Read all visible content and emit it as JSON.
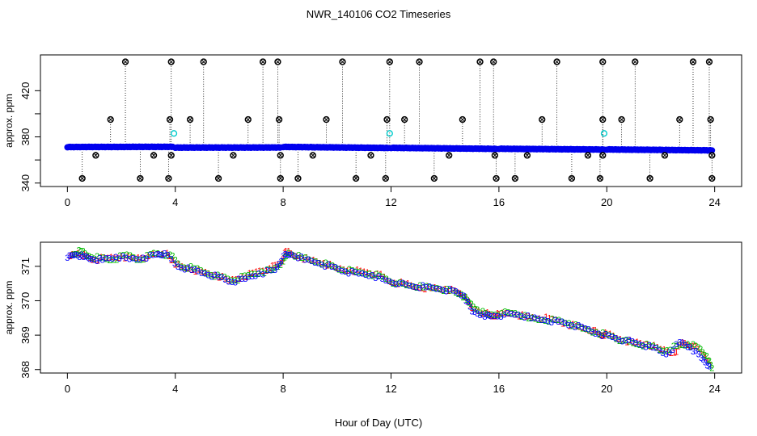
{
  "figure": {
    "title": "NWR_140106  CO2 Timeseries",
    "xlabel": "Hour of Day (UTC)"
  },
  "colors": {
    "axis": "#000000",
    "main_series": "#0000ee",
    "outlier_marker": "#000000",
    "flag_marker": "#00cccc",
    "spike_line": "#000000",
    "sub_series": [
      "#ff0000",
      "#00bb00",
      "#0000ff"
    ]
  },
  "chart_data": [
    {
      "type": "scatter",
      "panel": "top",
      "ylabel": "approx. ppm",
      "xlim": [
        -1,
        25
      ],
      "ylim": [
        337,
        451
      ],
      "x_ticks": [
        0,
        4,
        8,
        12,
        16,
        20,
        24
      ],
      "y_ticks": [
        340,
        360,
        380,
        400,
        420
      ],
      "y_tick_labels": [
        "340",
        "",
        "380",
        "",
        "420"
      ],
      "baseline": {
        "description": "dense series of blue circles",
        "segments": [
          {
            "x": [
              0.0,
              3.9
            ],
            "y": [
              371.2,
              371.4
            ]
          },
          {
            "x": [
              4.0,
              7.9
            ],
            "y": [
              370.7,
              370.8
            ]
          },
          {
            "x": [
              8.0,
              11.9
            ],
            "y": [
              371.3,
              370.4
            ]
          },
          {
            "x": [
              12.0,
              15.9
            ],
            "y": [
              370.5,
              369.6
            ]
          },
          {
            "x": [
              16.0,
              19.9
            ],
            "y": [
              369.7,
              369.0
            ]
          },
          {
            "x": [
              20.0,
              23.9
            ],
            "y": [
              369.1,
              368.3
            ]
          }
        ]
      },
      "flagged": [
        {
          "x": 3.95,
          "y": 383
        },
        {
          "x": 11.95,
          "y": 383
        },
        {
          "x": 19.9,
          "y": 383
        }
      ],
      "outliers_high": [
        {
          "x": 2.15,
          "y": 445
        },
        {
          "x": 3.85,
          "y": 445
        },
        {
          "x": 5.05,
          "y": 445
        },
        {
          "x": 7.25,
          "y": 445
        },
        {
          "x": 7.8,
          "y": 445
        },
        {
          "x": 10.2,
          "y": 445
        },
        {
          "x": 11.95,
          "y": 445
        },
        {
          "x": 13.05,
          "y": 445
        },
        {
          "x": 15.3,
          "y": 445
        },
        {
          "x": 15.8,
          "y": 445
        },
        {
          "x": 18.15,
          "y": 445
        },
        {
          "x": 19.85,
          "y": 445
        },
        {
          "x": 21.05,
          "y": 445
        },
        {
          "x": 23.2,
          "y": 445
        },
        {
          "x": 23.8,
          "y": 445
        },
        {
          "x": 1.6,
          "y": 395
        },
        {
          "x": 3.8,
          "y": 395
        },
        {
          "x": 4.55,
          "y": 395
        },
        {
          "x": 6.7,
          "y": 395
        },
        {
          "x": 7.85,
          "y": 395
        },
        {
          "x": 9.6,
          "y": 395
        },
        {
          "x": 11.85,
          "y": 395
        },
        {
          "x": 12.5,
          "y": 395
        },
        {
          "x": 14.65,
          "y": 395
        },
        {
          "x": 17.6,
          "y": 395
        },
        {
          "x": 19.85,
          "y": 395
        },
        {
          "x": 20.55,
          "y": 395
        },
        {
          "x": 22.7,
          "y": 395
        },
        {
          "x": 23.85,
          "y": 395
        }
      ],
      "outliers_low": [
        {
          "x": 0.55,
          "y": 344
        },
        {
          "x": 2.7,
          "y": 344
        },
        {
          "x": 3.75,
          "y": 344
        },
        {
          "x": 5.6,
          "y": 344
        },
        {
          "x": 7.9,
          "y": 344
        },
        {
          "x": 8.55,
          "y": 344
        },
        {
          "x": 10.7,
          "y": 344
        },
        {
          "x": 11.8,
          "y": 344
        },
        {
          "x": 13.6,
          "y": 344
        },
        {
          "x": 15.9,
          "y": 344
        },
        {
          "x": 16.6,
          "y": 344
        },
        {
          "x": 18.7,
          "y": 344
        },
        {
          "x": 19.75,
          "y": 344
        },
        {
          "x": 21.6,
          "y": 344
        },
        {
          "x": 23.9,
          "y": 344
        },
        {
          "x": 1.05,
          "y": 364
        },
        {
          "x": 3.2,
          "y": 364
        },
        {
          "x": 3.85,
          "y": 364
        },
        {
          "x": 6.15,
          "y": 364
        },
        {
          "x": 7.9,
          "y": 364
        },
        {
          "x": 9.1,
          "y": 364
        },
        {
          "x": 11.25,
          "y": 364
        },
        {
          "x": 14.15,
          "y": 364
        },
        {
          "x": 15.85,
          "y": 364
        },
        {
          "x": 17.05,
          "y": 364
        },
        {
          "x": 19.3,
          "y": 364
        },
        {
          "x": 19.85,
          "y": 364
        },
        {
          "x": 22.15,
          "y": 364
        },
        {
          "x": 23.9,
          "y": 364
        }
      ]
    },
    {
      "type": "scatter",
      "panel": "bottom",
      "ylabel": "approx. ppm",
      "xlim": [
        -1,
        25
      ],
      "ylim": [
        367.9,
        371.7
      ],
      "x_ticks": [
        0,
        4,
        8,
        12,
        16,
        20,
        24
      ],
      "y_ticks": [
        368,
        369,
        370,
        371
      ],
      "y_tick_labels": [
        "368",
        "369",
        "370",
        "371"
      ],
      "marker_labels": [
        "1",
        "2",
        "3"
      ],
      "series": [
        {
          "name": "1",
          "color": "#ff0000",
          "x": [
            0.1,
            0.4,
            0.7,
            1.0,
            1.5,
            2.0,
            2.5,
            3.0,
            3.7,
            4.0,
            4.5,
            5.0,
            5.5,
            6.0,
            6.5,
            7.0,
            7.5,
            7.9,
            8.1,
            8.5,
            9.0,
            9.5,
            10.0,
            10.5,
            11.0,
            11.5,
            12.0,
            12.5,
            13.0,
            13.5,
            14.0,
            14.5,
            14.8,
            15.0,
            15.5,
            15.8,
            16.0,
            16.5,
            17.0,
            17.5,
            18.0,
            18.5,
            19.0,
            19.5,
            19.8,
            20.0,
            20.5,
            21.0,
            21.5,
            22.0,
            22.5,
            22.8,
            23.2,
            23.6,
            23.85
          ],
          "y": [
            371.3,
            371.4,
            371.3,
            371.2,
            371.25,
            371.3,
            371.25,
            371.3,
            371.4,
            371.05,
            370.95,
            370.85,
            370.75,
            370.6,
            370.7,
            370.85,
            370.95,
            371.1,
            371.45,
            371.3,
            371.2,
            371.1,
            370.95,
            370.9,
            370.85,
            370.8,
            370.55,
            370.5,
            370.4,
            370.38,
            370.35,
            370.25,
            370.1,
            369.8,
            369.65,
            369.55,
            369.62,
            369.65,
            369.55,
            369.5,
            369.48,
            369.35,
            369.25,
            369.15,
            369.0,
            369.05,
            368.9,
            368.8,
            368.75,
            368.6,
            368.5,
            368.8,
            368.7,
            368.45,
            368.15
          ]
        },
        {
          "name": "2",
          "color": "#00bb00",
          "x": [
            0.2,
            0.5,
            0.8,
            1.2,
            1.7,
            2.2,
            2.7,
            3.2,
            3.8,
            4.2,
            4.7,
            5.2,
            5.7,
            6.2,
            6.7,
            7.2,
            7.6,
            8.0,
            8.2,
            8.7,
            9.2,
            9.7,
            10.2,
            10.7,
            11.2,
            11.7,
            12.2,
            12.7,
            13.2,
            13.7,
            14.2,
            14.6,
            14.9,
            15.2,
            15.6,
            16.1,
            16.6,
            17.1,
            17.6,
            18.1,
            18.6,
            19.1,
            19.6,
            20.1,
            20.6,
            21.1,
            21.6,
            22.1,
            22.6,
            23.0,
            23.4,
            23.7,
            23.9
          ],
          "y": [
            371.35,
            371.45,
            371.3,
            371.25,
            371.2,
            371.35,
            371.2,
            371.4,
            371.35,
            371.0,
            370.95,
            370.8,
            370.7,
            370.6,
            370.75,
            370.85,
            370.9,
            371.15,
            371.4,
            371.25,
            371.15,
            371.05,
            370.9,
            370.85,
            370.8,
            370.7,
            370.5,
            370.45,
            370.4,
            370.38,
            370.3,
            370.2,
            369.95,
            369.75,
            369.6,
            369.65,
            369.65,
            369.5,
            369.45,
            369.45,
            369.35,
            369.2,
            369.1,
            369.0,
            368.85,
            368.75,
            368.7,
            368.55,
            368.7,
            368.75,
            368.65,
            368.4,
            368.05
          ]
        },
        {
          "name": "3",
          "color": "#0000ff",
          "x": [
            0.0,
            0.3,
            0.6,
            0.9,
            1.3,
            1.8,
            2.3,
            2.8,
            3.3,
            3.6,
            4.1,
            4.6,
            5.1,
            5.6,
            6.1,
            6.6,
            7.1,
            7.7,
            8.0,
            8.3,
            8.8,
            9.3,
            9.8,
            10.3,
            10.8,
            11.3,
            11.8,
            12.3,
            12.8,
            13.3,
            13.8,
            14.3,
            14.7,
            15.0,
            15.4,
            15.7,
            16.2,
            16.7,
            17.2,
            17.7,
            18.2,
            18.7,
            19.2,
            19.7,
            20.2,
            20.7,
            21.2,
            21.7,
            22.2,
            22.7,
            23.1,
            23.5,
            23.8
          ],
          "y": [
            371.25,
            371.35,
            371.28,
            371.22,
            371.2,
            371.28,
            371.22,
            371.25,
            371.35,
            371.38,
            371.0,
            370.9,
            370.8,
            370.7,
            370.55,
            370.65,
            370.8,
            370.9,
            371.3,
            371.35,
            371.2,
            371.1,
            371.0,
            370.85,
            370.8,
            370.75,
            370.6,
            370.5,
            370.42,
            370.4,
            370.35,
            370.3,
            370.15,
            369.7,
            369.6,
            369.55,
            369.6,
            369.6,
            369.5,
            369.45,
            369.4,
            369.3,
            369.2,
            369.05,
            368.95,
            368.85,
            368.75,
            368.65,
            368.45,
            368.8,
            368.65,
            368.35,
            368.1
          ]
        }
      ]
    }
  ]
}
